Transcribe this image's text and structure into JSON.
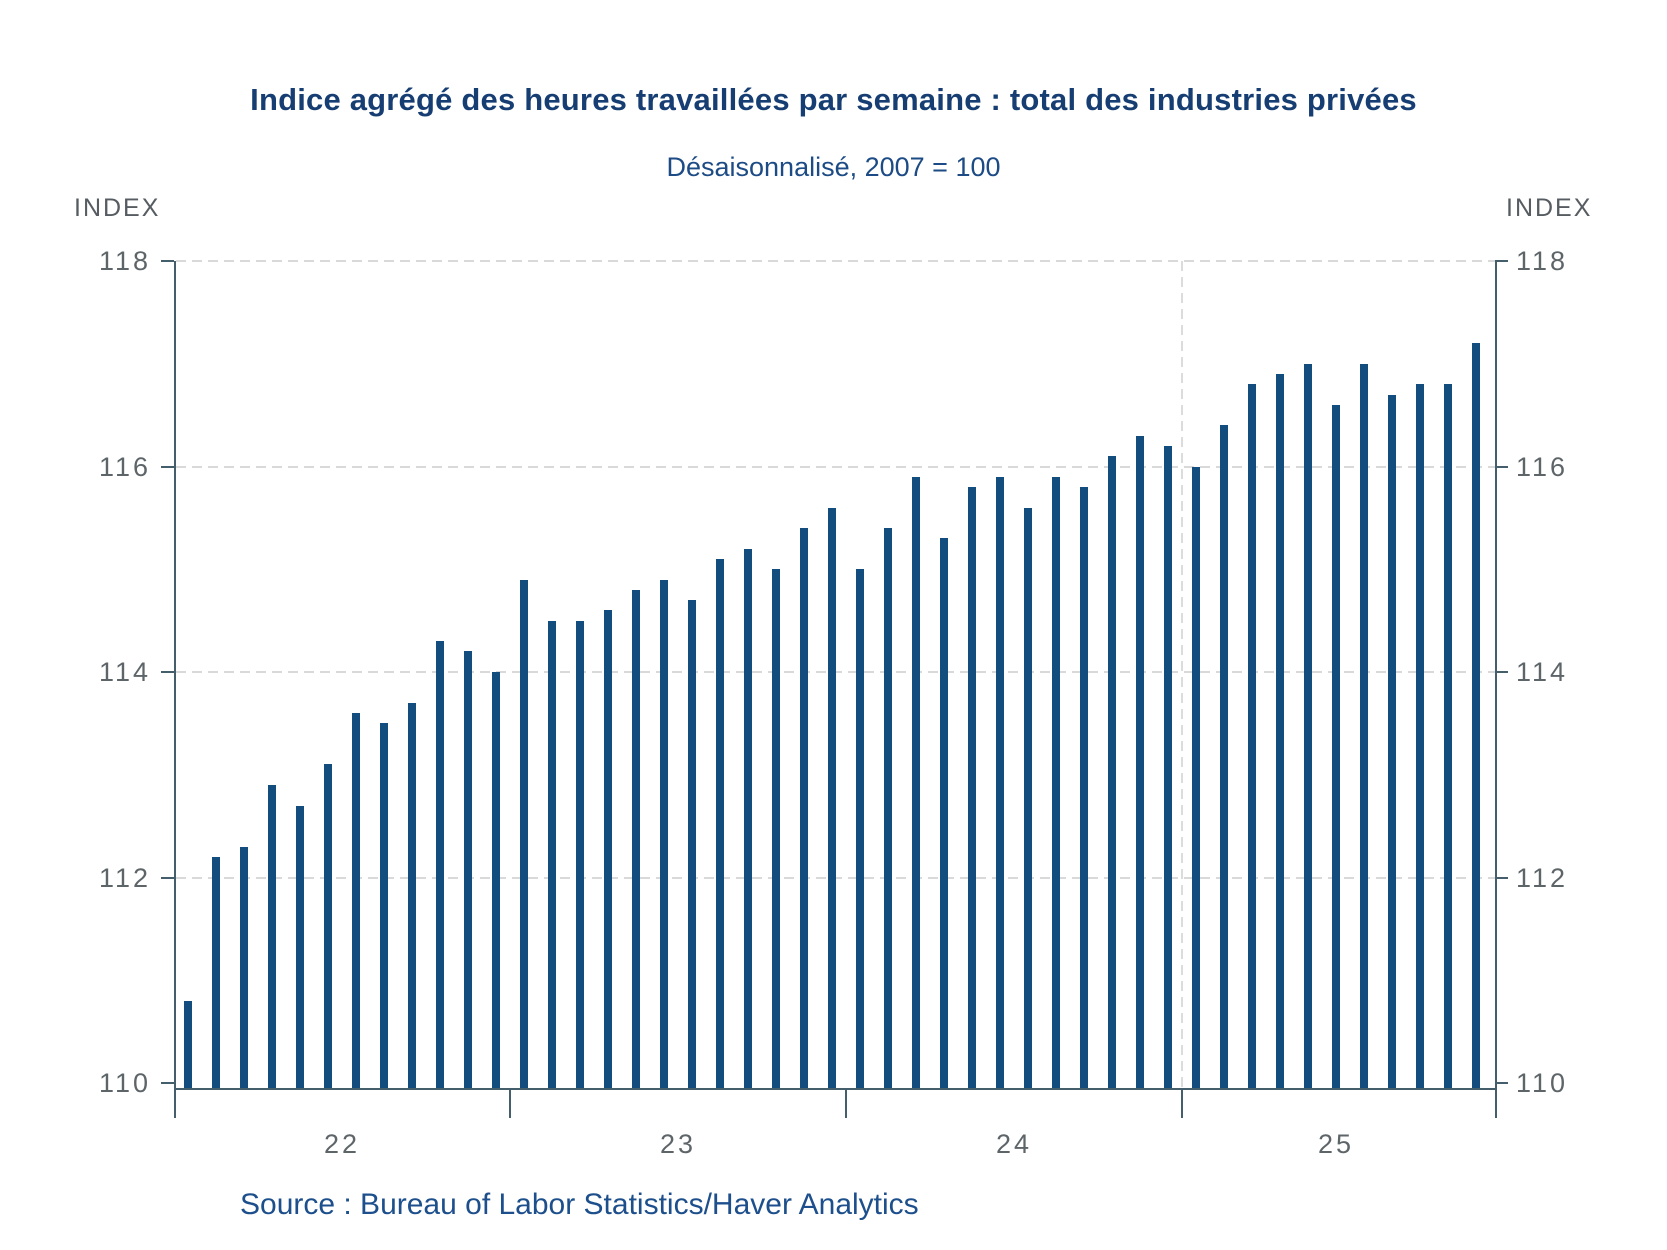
{
  "header": {
    "title": "Indice agrégé des heures travaillées par semaine : total des industries privées",
    "subtitle": "Désaisonnalisé, 2007 = 100"
  },
  "axis": {
    "left_unit_label": "INDEX",
    "right_unit_label": "INDEX",
    "y_ticks": [
      110,
      112,
      114,
      116,
      118
    ],
    "x_year_labels": [
      "22",
      "23",
      "24",
      "25"
    ]
  },
  "source_line": "Source : Bureau of Labor Statistics/Haver Analytics",
  "colors": {
    "bar": "#124d7d",
    "title_text": "#173e73",
    "subtitle_text": "#1d4b85",
    "source_text": "#1d4f8c",
    "axis_line": "#455e6c",
    "tick_label": "#5e6569",
    "gridline": "#d9d9d9"
  },
  "chart_data": {
    "type": "bar",
    "title": "Indice agrégé des heures travaillées par semaine : total des industries privées",
    "subtitle": "Désaisonnalisé, 2007 = 100",
    "xlabel": "",
    "ylabel": "INDEX",
    "ylim": [
      110,
      118
    ],
    "y_ticks": [
      110,
      112,
      114,
      116,
      118
    ],
    "grid": "horizontal dashed gridlines at 112/114/116/118, vertical dashed line at 2024/2025 boundary",
    "legend_position": "none",
    "vline_at_year": "2025",
    "x": [
      "2022-01",
      "2022-02",
      "2022-03",
      "2022-04",
      "2022-05",
      "2022-06",
      "2022-07",
      "2022-08",
      "2022-09",
      "2022-10",
      "2022-11",
      "2022-12",
      "2023-01",
      "2023-02",
      "2023-03",
      "2023-04",
      "2023-05",
      "2023-06",
      "2023-07",
      "2023-08",
      "2023-09",
      "2023-10",
      "2023-11",
      "2023-12",
      "2024-01",
      "2024-02",
      "2024-03",
      "2024-04",
      "2024-05",
      "2024-06",
      "2024-07",
      "2024-08",
      "2024-09",
      "2024-10",
      "2024-11",
      "2024-12",
      "2025-01",
      "2025-02",
      "2025-03",
      "2025-04",
      "2025-05",
      "2025-06",
      "2025-07",
      "2025-08",
      "2025-09",
      "2025-10",
      "2025-11"
    ],
    "values": [
      110.8,
      112.2,
      112.3,
      112.9,
      112.7,
      113.1,
      113.6,
      113.5,
      113.7,
      114.3,
      114.2,
      114.0,
      114.9,
      114.5,
      114.5,
      114.6,
      114.8,
      114.9,
      114.7,
      115.1,
      115.2,
      115.0,
      115.4,
      115.6,
      115.0,
      115.4,
      115.9,
      115.3,
      115.8,
      115.9,
      115.6,
      115.9,
      115.8,
      116.1,
      116.3,
      116.2,
      116.0,
      116.4,
      116.8,
      116.9,
      117.0,
      116.6,
      117.0,
      116.7,
      116.8,
      116.8,
      117.2
    ]
  }
}
